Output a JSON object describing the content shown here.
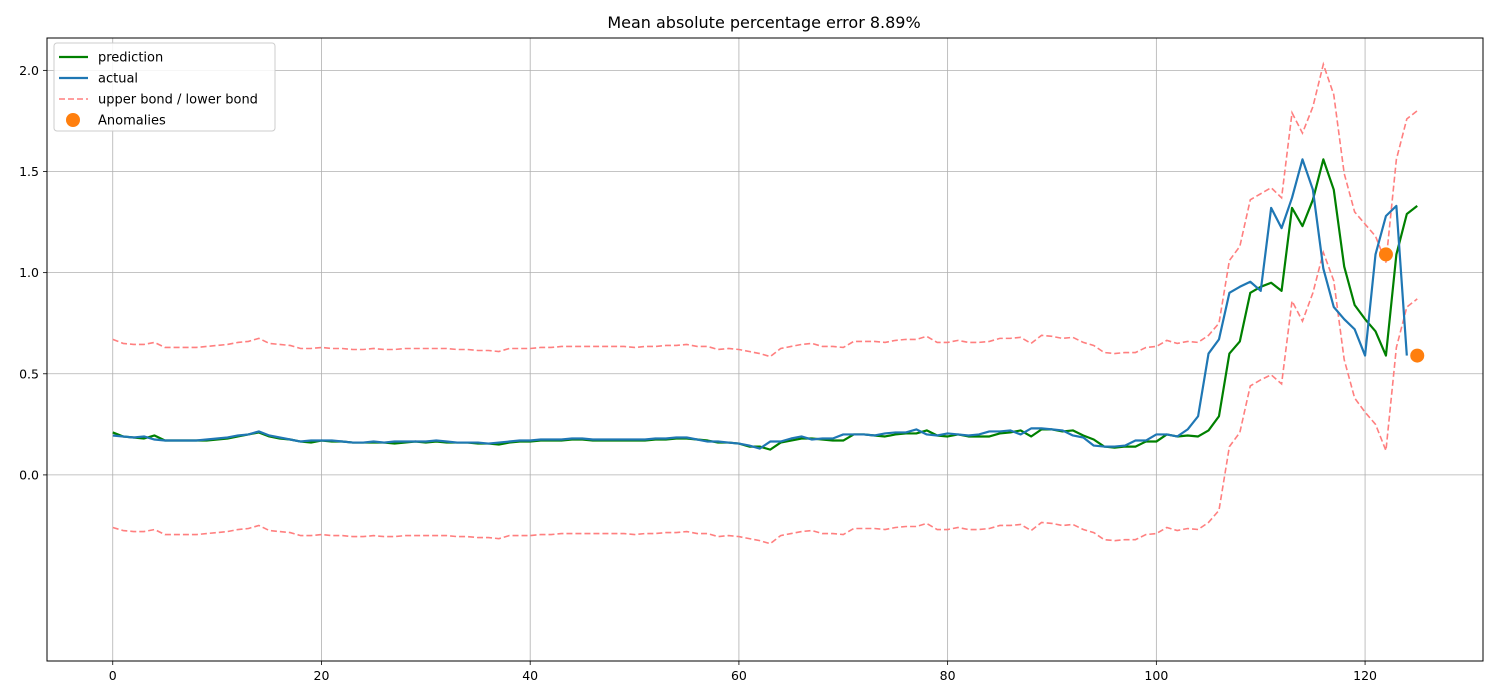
{
  "chart_data": {
    "type": "line",
    "title": "Mean absolute percentage error 8.89%",
    "xlabel": "",
    "ylabel": "",
    "xlim": [
      -6.3,
      131.3
    ],
    "ylim": [
      -0.92,
      2.16
    ],
    "x_ticks": [
      0,
      20,
      40,
      60,
      80,
      100,
      120
    ],
    "y_ticks": [
      0.0,
      0.5,
      1.0,
      1.5,
      2.0
    ],
    "x_tick_labels": [
      "0",
      "20",
      "40",
      "60",
      "80",
      "100",
      "120"
    ],
    "y_tick_labels": [
      "0.0",
      "0.5",
      "1.0",
      "1.5",
      "2.0"
    ],
    "grid": true,
    "legend_position": "upper-left",
    "colors": {
      "prediction": "#008000",
      "actual": "#1f77b4",
      "bounds": "#ff7f7f",
      "anomalies": "#ff7f0e"
    },
    "series": [
      {
        "name": "prediction",
        "style": "solid",
        "x_start": 0,
        "values": [
          0.21,
          0.19,
          0.185,
          0.18,
          0.195,
          0.17,
          0.17,
          0.17,
          0.17,
          0.17,
          0.175,
          0.18,
          0.19,
          0.2,
          0.21,
          0.19,
          0.18,
          0.175,
          0.165,
          0.16,
          0.17,
          0.165,
          0.165,
          0.16,
          0.16,
          0.16,
          0.16,
          0.155,
          0.16,
          0.165,
          0.16,
          0.165,
          0.16,
          0.16,
          0.16,
          0.155,
          0.155,
          0.15,
          0.16,
          0.165,
          0.165,
          0.17,
          0.17,
          0.17,
          0.175,
          0.175,
          0.17,
          0.17,
          0.17,
          0.17,
          0.17,
          0.17,
          0.175,
          0.175,
          0.18,
          0.18,
          0.175,
          0.17,
          0.16,
          0.16,
          0.155,
          0.14,
          0.14,
          0.125,
          0.16,
          0.17,
          0.18,
          0.18,
          0.175,
          0.17,
          0.17,
          0.2,
          0.2,
          0.195,
          0.19,
          0.2,
          0.205,
          0.205,
          0.22,
          0.195,
          0.19,
          0.2,
          0.19,
          0.19,
          0.19,
          0.205,
          0.21,
          0.22,
          0.19,
          0.225,
          0.225,
          0.215,
          0.22,
          0.195,
          0.175,
          0.14,
          0.135,
          0.14,
          0.14,
          0.165,
          0.165,
          0.2,
          0.19,
          0.195,
          0.19,
          0.22,
          0.29,
          0.6,
          0.66,
          0.9,
          0.93,
          0.95,
          0.91,
          1.32,
          1.23,
          1.36,
          1.56,
          1.41,
          1.03,
          0.84,
          0.77,
          0.71,
          0.59,
          1.09,
          1.29,
          1.33
        ]
      },
      {
        "name": "actual",
        "style": "solid",
        "x_start": 0,
        "values": [
          0.195,
          0.19,
          0.185,
          0.19,
          0.175,
          0.17,
          0.17,
          0.17,
          0.17,
          0.175,
          0.18,
          0.185,
          0.195,
          0.2,
          0.215,
          0.195,
          0.185,
          0.175,
          0.165,
          0.17,
          0.17,
          0.17,
          0.165,
          0.16,
          0.16,
          0.165,
          0.16,
          0.165,
          0.165,
          0.165,
          0.165,
          0.17,
          0.165,
          0.16,
          0.16,
          0.16,
          0.155,
          0.16,
          0.165,
          0.17,
          0.17,
          0.175,
          0.175,
          0.175,
          0.18,
          0.18,
          0.175,
          0.175,
          0.175,
          0.175,
          0.175,
          0.175,
          0.18,
          0.18,
          0.185,
          0.185,
          0.175,
          0.165,
          0.165,
          0.16,
          0.155,
          0.145,
          0.13,
          0.165,
          0.165,
          0.18,
          0.19,
          0.175,
          0.18,
          0.18,
          0.2,
          0.2,
          0.2,
          0.195,
          0.205,
          0.21,
          0.21,
          0.225,
          0.2,
          0.195,
          0.205,
          0.2,
          0.195,
          0.2,
          0.215,
          0.215,
          0.22,
          0.2,
          0.23,
          0.23,
          0.225,
          0.22,
          0.195,
          0.185,
          0.145,
          0.14,
          0.14,
          0.145,
          0.17,
          0.17,
          0.2,
          0.2,
          0.19,
          0.225,
          0.29,
          0.6,
          0.67,
          0.9,
          0.93,
          0.955,
          0.91,
          1.32,
          1.22,
          1.37,
          1.56,
          1.41,
          1.02,
          0.83,
          0.77,
          0.72,
          0.59,
          1.09,
          1.28,
          1.33,
          0.59
        ]
      },
      {
        "name": "upper bond / lower bond",
        "style": "dashed",
        "x_start": 0,
        "upper": [
          0.67,
          0.65,
          0.645,
          0.645,
          0.655,
          0.63,
          0.63,
          0.63,
          0.63,
          0.635,
          0.64,
          0.645,
          0.655,
          0.66,
          0.675,
          0.65,
          0.645,
          0.64,
          0.625,
          0.625,
          0.63,
          0.625,
          0.625,
          0.62,
          0.62,
          0.625,
          0.62,
          0.62,
          0.625,
          0.625,
          0.625,
          0.625,
          0.625,
          0.62,
          0.62,
          0.615,
          0.615,
          0.61,
          0.625,
          0.625,
          0.625,
          0.63,
          0.63,
          0.635,
          0.635,
          0.635,
          0.635,
          0.635,
          0.635,
          0.635,
          0.63,
          0.635,
          0.635,
          0.64,
          0.64,
          0.645,
          0.635,
          0.635,
          0.62,
          0.625,
          0.62,
          0.61,
          0.6,
          0.585,
          0.625,
          0.635,
          0.645,
          0.65,
          0.635,
          0.635,
          0.63,
          0.66,
          0.66,
          0.66,
          0.655,
          0.665,
          0.67,
          0.67,
          0.685,
          0.655,
          0.655,
          0.665,
          0.655,
          0.655,
          0.66,
          0.675,
          0.675,
          0.68,
          0.65,
          0.69,
          0.685,
          0.675,
          0.68,
          0.655,
          0.64,
          0.605,
          0.6,
          0.605,
          0.605,
          0.63,
          0.635,
          0.665,
          0.65,
          0.66,
          0.655,
          0.69,
          0.75,
          1.06,
          1.13,
          1.36,
          1.39,
          1.42,
          1.37,
          1.79,
          1.69,
          1.82,
          2.03,
          1.88,
          1.49,
          1.3,
          1.24,
          1.18,
          1.05,
          1.56,
          1.76,
          1.8
        ],
        "lower": [
          -0.26,
          -0.275,
          -0.28,
          -0.28,
          -0.27,
          -0.295,
          -0.295,
          -0.295,
          -0.295,
          -0.29,
          -0.285,
          -0.28,
          -0.27,
          -0.265,
          -0.25,
          -0.275,
          -0.28,
          -0.285,
          -0.3,
          -0.3,
          -0.295,
          -0.3,
          -0.3,
          -0.305,
          -0.305,
          -0.3,
          -0.305,
          -0.305,
          -0.3,
          -0.3,
          -0.3,
          -0.3,
          -0.3,
          -0.305,
          -0.305,
          -0.31,
          -0.31,
          -0.315,
          -0.3,
          -0.3,
          -0.3,
          -0.295,
          -0.295,
          -0.29,
          -0.29,
          -0.29,
          -0.29,
          -0.29,
          -0.29,
          -0.29,
          -0.295,
          -0.29,
          -0.29,
          -0.285,
          -0.285,
          -0.28,
          -0.29,
          -0.29,
          -0.305,
          -0.3,
          -0.305,
          -0.315,
          -0.325,
          -0.34,
          -0.3,
          -0.29,
          -0.28,
          -0.275,
          -0.29,
          -0.29,
          -0.295,
          -0.265,
          -0.265,
          -0.265,
          -0.27,
          -0.26,
          -0.255,
          -0.255,
          -0.24,
          -0.27,
          -0.27,
          -0.26,
          -0.27,
          -0.27,
          -0.265,
          -0.25,
          -0.25,
          -0.245,
          -0.275,
          -0.235,
          -0.24,
          -0.25,
          -0.245,
          -0.27,
          -0.285,
          -0.32,
          -0.325,
          -0.32,
          -0.32,
          -0.295,
          -0.29,
          -0.26,
          -0.275,
          -0.265,
          -0.27,
          -0.235,
          -0.175,
          0.14,
          0.21,
          0.44,
          0.47,
          0.495,
          0.45,
          0.86,
          0.76,
          0.9,
          1.1,
          0.96,
          0.57,
          0.38,
          0.31,
          0.25,
          0.12,
          0.63,
          0.83,
          0.87
        ]
      },
      {
        "name": "Anomalies",
        "style": "marker",
        "x": [
          122,
          125
        ],
        "values": [
          1.09,
          0.59
        ]
      }
    ]
  }
}
